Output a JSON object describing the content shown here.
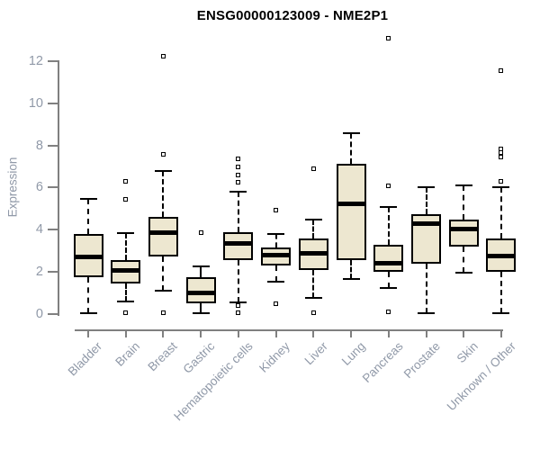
{
  "title": "ENSG00000123009 - NME2P1",
  "chart_data": {
    "type": "boxplot",
    "title": "ENSG00000123009 - NME2P1",
    "xlabel": "",
    "ylabel": "Expression",
    "ylim": [
      0,
      13.2
    ],
    "yticks": [
      0,
      2,
      4,
      6,
      8,
      10,
      12
    ],
    "grid": false,
    "legend": "none",
    "categories": [
      "Bladder",
      "Brain",
      "Breast",
      "Gastric",
      "Hematopoietic cells",
      "Kidney",
      "Liver",
      "Lung",
      "Pancreas",
      "Prostate",
      "Skin",
      "Unknown / Other"
    ],
    "series": [
      {
        "name": "Bladder",
        "whisker_low": 0.05,
        "q1": 1.75,
        "median": 2.7,
        "q3": 3.8,
        "whisker_high": 5.45,
        "outliers": []
      },
      {
        "name": "Brain",
        "whisker_low": 0.6,
        "q1": 1.45,
        "median": 2.05,
        "q3": 2.55,
        "whisker_high": 3.85,
        "outliers": [
          6.3,
          5.45,
          0.05
        ]
      },
      {
        "name": "Breast",
        "whisker_low": 1.1,
        "q1": 2.75,
        "median": 3.85,
        "q3": 4.6,
        "whisker_high": 6.8,
        "outliers": [
          12.25,
          7.6,
          0.05
        ]
      },
      {
        "name": "Gastric",
        "whisker_low": 0.05,
        "q1": 0.5,
        "median": 1.0,
        "q3": 1.75,
        "whisker_high": 2.25,
        "outliers": [
          3.85
        ]
      },
      {
        "name": "Hematopoietic cells",
        "whisker_low": 0.55,
        "q1": 2.55,
        "median": 3.35,
        "q3": 3.9,
        "whisker_high": 5.8,
        "outliers": [
          7.35,
          7.0,
          6.6,
          6.25,
          0.4,
          0.05
        ]
      },
      {
        "name": "Kidney",
        "whisker_low": 1.55,
        "q1": 2.3,
        "median": 2.8,
        "q3": 3.15,
        "whisker_high": 3.8,
        "outliers": [
          4.95,
          0.5
        ]
      },
      {
        "name": "Liver",
        "whisker_low": 0.75,
        "q1": 2.1,
        "median": 2.9,
        "q3": 3.6,
        "whisker_high": 4.5,
        "outliers": [
          6.9,
          0.05
        ]
      },
      {
        "name": "Lung",
        "whisker_low": 1.65,
        "q1": 2.55,
        "median": 5.25,
        "q3": 7.15,
        "whisker_high": 8.6,
        "outliers": []
      },
      {
        "name": "Pancreas",
        "whisker_low": 1.25,
        "q1": 2.0,
        "median": 2.4,
        "q3": 3.3,
        "whisker_high": 5.1,
        "outliers": [
          13.1,
          6.1,
          0.1
        ]
      },
      {
        "name": "Prostate",
        "whisker_low": 0.05,
        "q1": 2.4,
        "median": 4.3,
        "q3": 4.75,
        "whisker_high": 6.0,
        "outliers": []
      },
      {
        "name": "Skin",
        "whisker_low": 1.95,
        "q1": 3.2,
        "median": 4.05,
        "q3": 4.5,
        "whisker_high": 6.1,
        "outliers": []
      },
      {
        "name": "Unknown / Other",
        "whisker_low": 0.05,
        "q1": 2.0,
        "median": 2.75,
        "q3": 3.6,
        "whisker_high": 6.0,
        "outliers": [
          11.55,
          7.85,
          7.65,
          7.45,
          6.3
        ]
      }
    ],
    "colors": {
      "box_fill": "#EDE7D0",
      "box_line": "#000000",
      "axis_line": "#808080",
      "tick_label": "#9099A8",
      "title": "#000000",
      "background": "#FFFFFF"
    }
  }
}
